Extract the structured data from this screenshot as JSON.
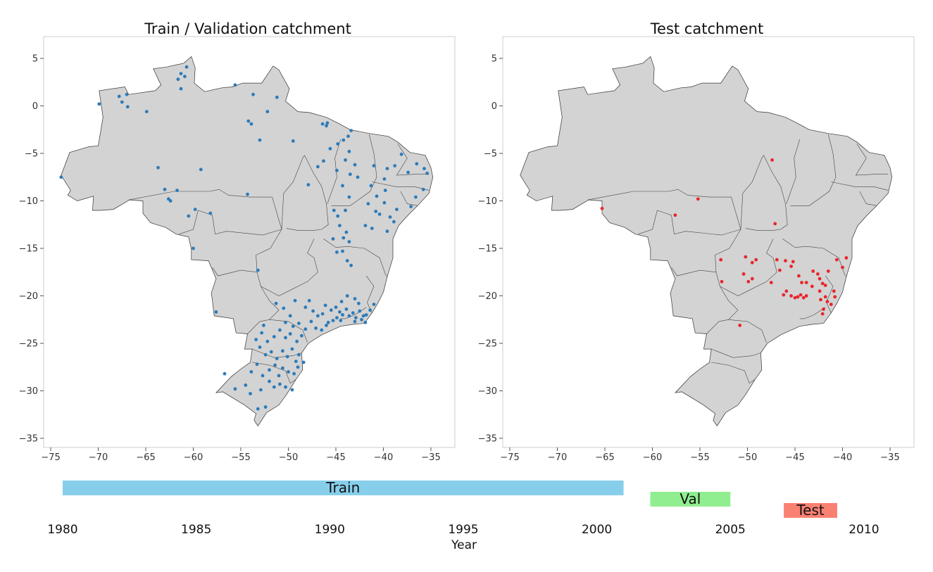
{
  "maps": [
    {
      "title": "Train / Validation catchment",
      "dot_color": "#2b7bba",
      "xticks": [
        "−75",
        "−70",
        "−65",
        "−60",
        "−55",
        "−50",
        "−45",
        "−40",
        "−35"
      ],
      "yticks": [
        "5",
        "0",
        "−5",
        "−10",
        "−15",
        "−20",
        "−25",
        "−30",
        "−35"
      ],
      "points": [
        [
          -73.9,
          -7.5
        ],
        [
          -69.9,
          0.2
        ],
        [
          -67.8,
          1.0
        ],
        [
          -67.5,
          0.4
        ],
        [
          -67.0,
          1.2
        ],
        [
          -66.9,
          -0.1
        ],
        [
          -64.9,
          -0.6
        ],
        [
          -61.6,
          2.8
        ],
        [
          -61.3,
          3.4
        ],
        [
          -60.7,
          4.1
        ],
        [
          -60.9,
          3.1
        ],
        [
          -61.3,
          1.8
        ],
        [
          -55.6,
          2.2
        ],
        [
          -53.7,
          1.2
        ],
        [
          -52.2,
          -0.6
        ],
        [
          -51.2,
          0.9
        ],
        [
          -54.2,
          -1.6
        ],
        [
          -53.9,
          -1.9
        ],
        [
          -53.0,
          -3.6
        ],
        [
          -49.5,
          -3.7
        ],
        [
          -63.7,
          -6.5
        ],
        [
          -59.2,
          -6.7
        ],
        [
          -63.0,
          -8.8
        ],
        [
          -61.7,
          -8.9
        ],
        [
          -62.6,
          -9.8
        ],
        [
          -62.4,
          -10.0
        ],
        [
          -59.8,
          -10.9
        ],
        [
          -60.5,
          -11.6
        ],
        [
          -58.2,
          -11.3
        ],
        [
          -54.3,
          -9.3
        ],
        [
          -60.0,
          -15.0
        ],
        [
          -53.2,
          -17.3
        ],
        [
          -57.6,
          -21.7
        ],
        [
          -47.9,
          -8.3
        ],
        [
          -46.9,
          -6.4
        ],
        [
          -46.3,
          -5.8
        ],
        [
          -45.6,
          -4.5
        ],
        [
          -44.8,
          -4.0
        ],
        [
          -44.2,
          -3.6
        ],
        [
          -43.7,
          -3.2
        ],
        [
          -43.4,
          -2.6
        ],
        [
          -45.9,
          -1.8
        ],
        [
          -46.4,
          -1.9
        ],
        [
          -46.0,
          -2.1
        ],
        [
          -43.6,
          -4.8
        ],
        [
          -44.0,
          -5.7
        ],
        [
          -43.0,
          -6.2
        ],
        [
          -44.9,
          -6.8
        ],
        [
          -43.5,
          -7.2
        ],
        [
          -42.7,
          -7.5
        ],
        [
          -44.3,
          -8.4
        ],
        [
          -43.6,
          -9.6
        ],
        [
          -45.2,
          -11.0
        ],
        [
          -44.8,
          -11.6
        ],
        [
          -44.0,
          -11.0
        ],
        [
          -44.6,
          -12.6
        ],
        [
          -43.9,
          -13.3
        ],
        [
          -44.2,
          -13.9
        ],
        [
          -43.6,
          -14.3
        ],
        [
          -44.3,
          -15.3
        ],
        [
          -43.8,
          -16.3
        ],
        [
          -43.4,
          -16.8
        ],
        [
          -44.9,
          -15.4
        ],
        [
          -45.3,
          -14.0
        ],
        [
          -40.7,
          -9.5
        ],
        [
          -41.6,
          -10.3
        ],
        [
          -40.4,
          -11.4
        ],
        [
          -39.6,
          -13.2
        ],
        [
          -38.9,
          -12.2
        ],
        [
          -37.1,
          -10.6
        ],
        [
          -36.6,
          -9.6
        ],
        [
          -35.8,
          -8.8
        ],
        [
          -35.4,
          -7.1
        ],
        [
          -35.7,
          -6.6
        ],
        [
          -36.5,
          -6.1
        ],
        [
          -38.1,
          -5.1
        ],
        [
          -37.4,
          -7.0
        ],
        [
          -38.8,
          -6.3
        ],
        [
          -39.6,
          -6.6
        ],
        [
          -39.9,
          -7.7
        ],
        [
          -41.0,
          -6.3
        ],
        [
          -41.3,
          -8.4
        ],
        [
          -39.8,
          -8.9
        ],
        [
          -40.8,
          -11.1
        ],
        [
          -41.9,
          -12.6
        ],
        [
          -41.2,
          -12.9
        ],
        [
          -39.3,
          -11.7
        ],
        [
          -38.6,
          -10.9
        ],
        [
          -39.9,
          -10.2
        ],
        [
          -46.1,
          -21.0
        ],
        [
          -45.5,
          -21.5
        ],
        [
          -45.0,
          -21.2
        ],
        [
          -44.6,
          -21.7
        ],
        [
          -44.3,
          -22.0
        ],
        [
          -43.9,
          -21.4
        ],
        [
          -43.6,
          -22.1
        ],
        [
          -43.2,
          -21.8
        ],
        [
          -42.9,
          -22.3
        ],
        [
          -42.5,
          -21.6
        ],
        [
          -42.1,
          -22.1
        ],
        [
          -41.8,
          -22.0
        ],
        [
          -41.4,
          -21.5
        ],
        [
          -41.0,
          -20.9
        ],
        [
          -42.6,
          -20.8
        ],
        [
          -43.0,
          -20.3
        ],
        [
          -43.8,
          -20.0
        ],
        [
          -44.4,
          -20.6
        ],
        [
          -44.9,
          -22.3
        ],
        [
          -45.3,
          -22.6
        ],
        [
          -45.8,
          -22.8
        ],
        [
          -46.4,
          -21.9
        ],
        [
          -46.9,
          -22.1
        ],
        [
          -47.4,
          -21.6
        ],
        [
          -47.6,
          -22.7
        ],
        [
          -48.2,
          -23.5
        ],
        [
          -48.9,
          -22.9
        ],
        [
          -49.5,
          -23.2
        ],
        [
          -50.3,
          -22.8
        ],
        [
          -50.9,
          -23.6
        ],
        [
          -51.5,
          -24.3
        ],
        [
          -52.2,
          -24.8
        ],
        [
          -52.8,
          -23.9
        ],
        [
          -53.4,
          -24.6
        ],
        [
          -53.0,
          -25.4
        ],
        [
          -52.4,
          -26.2
        ],
        [
          -51.8,
          -25.9
        ],
        [
          -51.2,
          -26.6
        ],
        [
          -50.6,
          -25.8
        ],
        [
          -50.1,
          -26.4
        ],
        [
          -49.6,
          -25.6
        ],
        [
          -49.2,
          -26.9
        ],
        [
          -49.0,
          -27.5
        ],
        [
          -49.4,
          -28.2
        ],
        [
          -50.0,
          -28.0
        ],
        [
          -50.6,
          -27.6
        ],
        [
          -51.4,
          -27.3
        ],
        [
          -52.0,
          -27.8
        ],
        [
          -52.7,
          -28.4
        ],
        [
          -53.3,
          -27.2
        ],
        [
          -53.9,
          -28.0
        ],
        [
          -52.0,
          -29.0
        ],
        [
          -51.5,
          -29.6
        ],
        [
          -50.9,
          -29.3
        ],
        [
          -50.3,
          -29.6
        ],
        [
          -49.6,
          -29.9
        ],
        [
          -53.2,
          -31.9
        ],
        [
          -52.4,
          -31.7
        ],
        [
          -55.6,
          -29.8
        ],
        [
          -54.5,
          -29.4
        ],
        [
          -54.0,
          -30.3
        ],
        [
          -56.7,
          -28.2
        ],
        [
          -49.1,
          -24.8
        ],
        [
          -48.6,
          -24.2
        ],
        [
          -49.8,
          -24.0
        ],
        [
          -47.1,
          -23.4
        ],
        [
          -46.5,
          -23.6
        ],
        [
          -46.0,
          -23.1
        ],
        [
          -44.5,
          -22.6
        ],
        [
          -43.0,
          -22.7
        ],
        [
          -42.3,
          -22.5
        ],
        [
          -41.9,
          -22.8
        ],
        [
          -51.3,
          -20.8
        ],
        [
          -49.3,
          -20.5
        ],
        [
          -48.2,
          -21.2
        ],
        [
          -47.8,
          -20.5
        ],
        [
          -50.5,
          -21.3
        ],
        [
          -49.8,
          -22.1
        ],
        [
          -52.6,
          -23.1
        ],
        [
          -50.3,
          -24.4
        ],
        [
          -48.4,
          -27.0
        ],
        [
          -48.9,
          -26.2
        ],
        [
          -51.0,
          -28.4
        ],
        [
          -52.9,
          -29.9
        ]
      ]
    },
    {
      "title": "Test catchment",
      "dot_color": "#e8262b",
      "xticks": [
        "−75",
        "−70",
        "−65",
        "−60",
        "−55",
        "−50",
        "−45",
        "−40",
        "−35"
      ],
      "yticks": [
        "5",
        "0",
        "−5",
        "−10",
        "−15",
        "−20",
        "−25",
        "−30",
        "−35"
      ],
      "points": [
        [
          -47.4,
          -5.7
        ],
        [
          -55.2,
          -9.8
        ],
        [
          -65.3,
          -10.8
        ],
        [
          -57.6,
          -11.5
        ],
        [
          -47.1,
          -12.4
        ],
        [
          -52.8,
          -16.2
        ],
        [
          -50.2,
          -15.9
        ],
        [
          -49.5,
          -16.5
        ],
        [
          -49.1,
          -16.2
        ],
        [
          -52.7,
          -18.5
        ],
        [
          -50.4,
          -17.7
        ],
        [
          -49.9,
          -18.5
        ],
        [
          -49.5,
          -18.2
        ],
        [
          -47.5,
          -18.6
        ],
        [
          -46.9,
          -16.2
        ],
        [
          -46.6,
          -17.3
        ],
        [
          -46.0,
          -16.3
        ],
        [
          -45.4,
          -16.9
        ],
        [
          -45.2,
          -16.4
        ],
        [
          -44.6,
          -17.9
        ],
        [
          -44.3,
          -18.6
        ],
        [
          -43.8,
          -18.6
        ],
        [
          -43.1,
          -17.4
        ],
        [
          -42.6,
          -17.7
        ],
        [
          -42.4,
          -18.2
        ],
        [
          -42.1,
          -18.7
        ],
        [
          -41.5,
          -17.4
        ],
        [
          -40.6,
          -16.2
        ],
        [
          -40.0,
          -17.0
        ],
        [
          -39.6,
          -16.0
        ],
        [
          -45.9,
          -19.5
        ],
        [
          -45.4,
          -20.0
        ],
        [
          -45.0,
          -20.2
        ],
        [
          -44.7,
          -20.1
        ],
        [
          -44.4,
          -19.9
        ],
        [
          -44.1,
          -20.2
        ],
        [
          -43.8,
          -20.0
        ],
        [
          -42.4,
          -19.5
        ],
        [
          -42.3,
          -20.4
        ],
        [
          -41.8,
          -20.1
        ],
        [
          -41.6,
          -20.6
        ],
        [
          -41.2,
          -20.9
        ],
        [
          -40.8,
          -20.1
        ],
        [
          -40.9,
          -19.5
        ],
        [
          -42.0,
          -21.4
        ],
        [
          -42.1,
          -21.9
        ],
        [
          -50.8,
          -23.1
        ],
        [
          -41.8,
          -18.9
        ],
        [
          -43.2,
          -19.0
        ],
        [
          -46.2,
          -19.9
        ]
      ]
    }
  ],
  "timeline": {
    "xlabel": "Year",
    "ticks": [
      "1980",
      "1985",
      "1990",
      "1995",
      "2000",
      "2005",
      "2010"
    ],
    "periods": [
      {
        "label": "Train",
        "start": 1980,
        "end": 2001,
        "row": 0,
        "color": "#87ceeb"
      },
      {
        "label": "Val",
        "start": 2002,
        "end": 2005,
        "row": 1,
        "color": "#90ee90"
      },
      {
        "label": "Test",
        "start": 2007,
        "end": 2009,
        "row": 2,
        "color": "#fa8072"
      }
    ]
  }
}
